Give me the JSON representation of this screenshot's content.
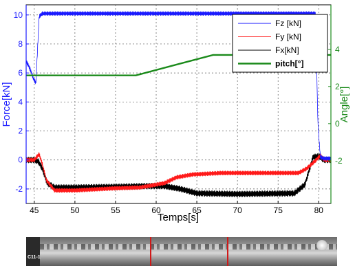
{
  "chart_data": {
    "type": "line",
    "xlabel": "Temps[s]",
    "ylabel_left": "Force[kN]",
    "ylabel_right": "Angle[°]",
    "xlim": [
      44,
      81.5
    ],
    "ylim_left": [
      -3,
      10.7
    ],
    "ylim_right": [
      -4.3,
      6.4
    ],
    "xticks": [
      45,
      50,
      55,
      60,
      65,
      70,
      75,
      80
    ],
    "yticks_left": [
      -2,
      0,
      2,
      4,
      6,
      8,
      10
    ],
    "yticks_right": [
      -2,
      0,
      2,
      4
    ],
    "grid": true,
    "legend_position": "top-right",
    "series": [
      {
        "name": "Fz [kN]",
        "axis": "left",
        "color": "#1a1aff",
        "noise": 0.15,
        "x": [
          44,
          44.3,
          44.6,
          44.9,
          45.2,
          45.6,
          46,
          47,
          60,
          70,
          79.3,
          79.6,
          79.9,
          80.2,
          80.6,
          81.5
        ],
        "y": [
          6.8,
          6.5,
          6.1,
          5.6,
          5.3,
          9.9,
          10.1,
          10.1,
          10.1,
          10.1,
          10.1,
          10.1,
          2.5,
          0.2,
          0.1,
          0.1
        ]
      },
      {
        "name": "Fy [kN]",
        "axis": "left",
        "color": "#ff1a1a",
        "noise": 0.16,
        "x": [
          44,
          45,
          45.6,
          46,
          46.5,
          47.5,
          50,
          55,
          58,
          61,
          62.5,
          64.5,
          68,
          75,
          77.5,
          78.5,
          79.5,
          80.2,
          80.7,
          81.5
        ],
        "y": [
          0,
          0,
          0.4,
          -0.3,
          -1.4,
          -2.1,
          -2.1,
          -1.95,
          -1.9,
          -1.6,
          -1.2,
          -1.0,
          -0.9,
          -0.9,
          -0.9,
          -0.6,
          -0.1,
          0.3,
          0.0,
          0.0
        ]
      },
      {
        "name": "Fx[kN]",
        "axis": "left",
        "color": "#000000",
        "noise": 0.22,
        "x": [
          44,
          45,
          45.5,
          46,
          46.6,
          47.5,
          50,
          55,
          59,
          61,
          63,
          65,
          70,
          77,
          78.3,
          79.3,
          80.1,
          80.6,
          81.5
        ],
        "y": [
          0,
          0,
          -0.1,
          -0.6,
          -1.6,
          -1.9,
          -1.9,
          -1.85,
          -1.8,
          -1.8,
          -2.0,
          -2.3,
          -2.35,
          -2.3,
          -1.7,
          0.2,
          0.25,
          0.0,
          0.0
        ]
      },
      {
        "name": "pitch[°]",
        "axis": "right",
        "color": "#1a8a1a",
        "noise": 0,
        "x": [
          44,
          57.5,
          67,
          81.5
        ],
        "y": [
          2.6,
          2.6,
          3.7,
          3.7
        ]
      }
    ]
  }
}
